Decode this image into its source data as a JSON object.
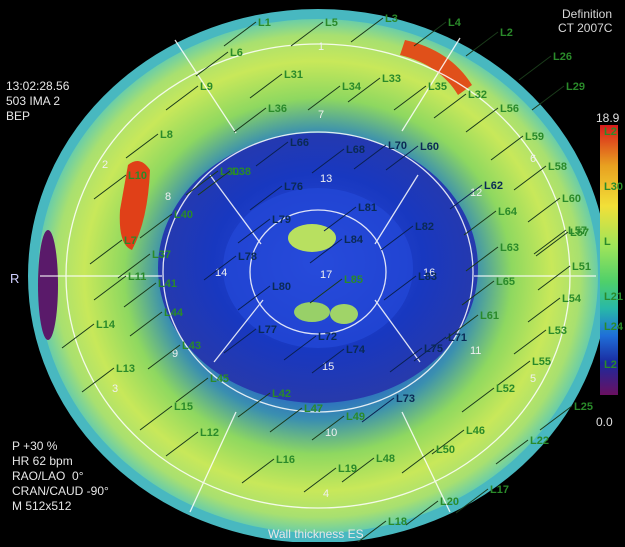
{
  "header": {
    "brand_line1": "Definition",
    "brand_line2": "CT 2007C"
  },
  "info_left": {
    "time": "13:02:28.56",
    "ima": "503 IMA 2",
    "mode": "BEP"
  },
  "info_bottom": {
    "phase": "P +30 %",
    "hr": "HR 62 bpm",
    "rao": "RAO/LAO  0°",
    "cran": "CRAN/CAUD -90°",
    "matrix": "M 512x512"
  },
  "footer": {
    "caption": "Wall thickness ES"
  },
  "orientation": {
    "left": "R"
  },
  "colorbar": {
    "max_label": "18.9",
    "min_label": "0.0",
    "colors": [
      "#d81b1b",
      "#e8a020",
      "#f2e038",
      "#9ee45a",
      "#4fd06a",
      "#28b8a8",
      "#1f6fd8",
      "#1a2aa0",
      "#2a1060",
      "#6a1060"
    ]
  },
  "colorbar_ticks": [
    "L2",
    "L30",
    "L",
    "L21",
    "L24",
    "L2"
  ],
  "segments": [
    "1",
    "2",
    "3",
    "4",
    "5",
    "6",
    "7",
    "8",
    "9",
    "10",
    "11",
    "12",
    "13",
    "14",
    "15",
    "16",
    "17"
  ],
  "labels": [
    "L1",
    "L5",
    "L3",
    "L4",
    "L2",
    "L26",
    "L29",
    "L6",
    "L9",
    "L31",
    "L34",
    "L33",
    "L35",
    "L32",
    "L56",
    "L36",
    "L7",
    "L30",
    "L66",
    "L68",
    "L70",
    "L60",
    "L59",
    "L58",
    "L8",
    "L38",
    "L76",
    "L57",
    "L62",
    "L10",
    "L40",
    "L79",
    "L81",
    "L82",
    "L64",
    "L60",
    "L84",
    "L37",
    "L78",
    "L83",
    "L63",
    "L57",
    "L11",
    "L41",
    "L80",
    "L85",
    "L65",
    "L51",
    "L54",
    "L44",
    "L77",
    "L72",
    "L71",
    "L61",
    "L53",
    "L14",
    "L43",
    "L74",
    "L75",
    "L55",
    "L13",
    "L45",
    "L42",
    "L73",
    "L52",
    "L15",
    "L47",
    "L49",
    "L46",
    "L25",
    "L12",
    "L16",
    "L48",
    "L50",
    "L22",
    "L19",
    "L17",
    "L20",
    "L18"
  ]
}
